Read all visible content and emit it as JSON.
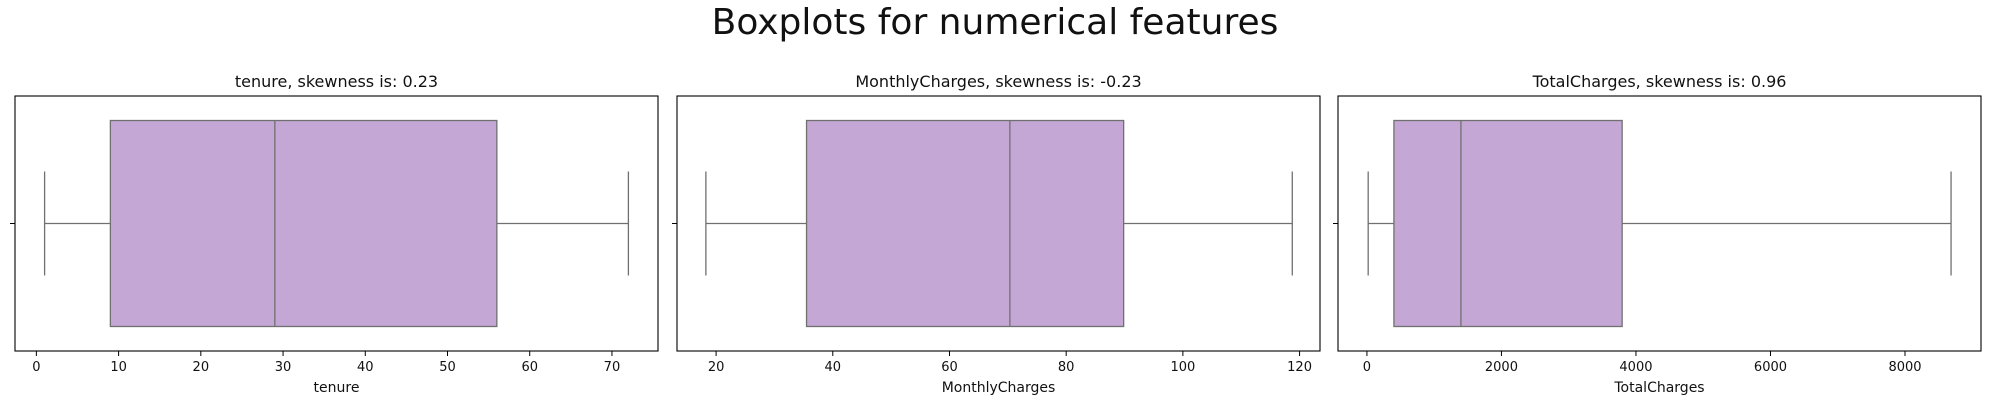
{
  "figure": {
    "title": "Boxplots for numerical features"
  },
  "style": {
    "box_fill": "#c4a7d4",
    "line_color": "#707070",
    "axis_color": "#000000"
  },
  "chart_data": [
    {
      "type": "box",
      "title": "tenure, skewness is: 0.23",
      "xlabel": "tenure",
      "xlim": [
        -2.6,
        75.6
      ],
      "ticks": [
        0,
        10,
        20,
        30,
        40,
        50,
        60,
        70
      ],
      "tick_labels": [
        "0",
        "10",
        "20",
        "30",
        "40",
        "50",
        "60",
        "70"
      ],
      "stats": {
        "whisker_low": 1,
        "q1": 9,
        "median": 29,
        "q3": 56,
        "whisker_high": 72
      }
    },
    {
      "type": "box",
      "title": "MonthlyCharges, skewness is: -0.23",
      "xlabel": "MonthlyCharges",
      "xlim": [
        13.3,
        123.5
      ],
      "ticks": [
        20,
        40,
        60,
        80,
        100,
        120
      ],
      "tick_labels": [
        "20",
        "40",
        "60",
        "80",
        "100",
        "120"
      ],
      "stats": {
        "whisker_low": 18.25,
        "q1": 35.5,
        "median": 70.35,
        "q3": 89.85,
        "whisker_high": 118.75
      }
    },
    {
      "type": "box",
      "title": "TotalCharges, skewness is: 0.96",
      "xlabel": "TotalCharges",
      "xlim": [
        -430,
        9130
      ],
      "ticks": [
        0,
        2000,
        4000,
        6000,
        8000
      ],
      "tick_labels": [
        "0",
        "2000",
        "4000",
        "6000",
        "8000"
      ],
      "stats": {
        "whisker_low": 18.8,
        "q1": 401.45,
        "median": 1397.47,
        "q3": 3794.74,
        "whisker_high": 8684.8
      }
    }
  ]
}
